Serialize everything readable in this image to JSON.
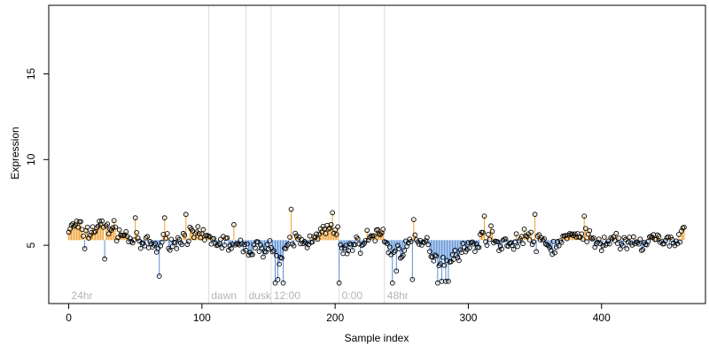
{
  "chart_data": {
    "type": "scatter",
    "title": "",
    "xlabel": "Sample index",
    "ylabel": "Expression",
    "xlim": [
      -15,
      478
    ],
    "ylim": [
      1.6,
      19.0
    ],
    "x_ticks": [
      "0",
      "100",
      "200",
      "300",
      "400"
    ],
    "x_tick_values": [
      0,
      100,
      200,
      300,
      400
    ],
    "y_ticks": [
      "5",
      "10",
      "15"
    ],
    "y_tick_values": [
      5,
      10,
      15
    ],
    "baseline": 5.3,
    "grid": false,
    "colors": {
      "above_baseline": "#f0a030",
      "below_baseline": "#5a8fd6",
      "condition_divider": "#dcdcdc",
      "condition_label": "#b4b4b4",
      "point_stroke": "#000000"
    },
    "conditions": [
      {
        "label": "24hr",
        "start": 0
      },
      {
        "label": "dawn",
        "start": 105
      },
      {
        "label": "dusk",
        "start": 133
      },
      {
        "label": "12:00",
        "start": 152
      },
      {
        "label": "0:00",
        "start": 203
      },
      {
        "label": "48hr",
        "start": 237
      }
    ],
    "anchors": [
      [
        0,
        5.9
      ],
      [
        5,
        6.2
      ],
      [
        10,
        5.9
      ],
      [
        15,
        5.7
      ],
      [
        20,
        6.0
      ],
      [
        26,
        6.2
      ],
      [
        32,
        6.0
      ],
      [
        38,
        5.7
      ],
      [
        44,
        5.5
      ],
      [
        50,
        5.2
      ],
      [
        55,
        5.0
      ],
      [
        60,
        5.1
      ],
      [
        66,
        4.9
      ],
      [
        70,
        5.1
      ],
      [
        75,
        5.4
      ],
      [
        80,
        5.0
      ],
      [
        86,
        5.6
      ],
      [
        92,
        5.6
      ],
      [
        98,
        5.5
      ],
      [
        104,
        5.4
      ],
      [
        110,
        5.2
      ],
      [
        116,
        5.2
      ],
      [
        122,
        5.0
      ],
      [
        128,
        4.9
      ],
      [
        134,
        4.8
      ],
      [
        140,
        4.8
      ],
      [
        146,
        4.9
      ],
      [
        152,
        5.0
      ],
      [
        156,
        4.2
      ],
      [
        160,
        4.0
      ],
      [
        166,
        5.2
      ],
      [
        172,
        5.4
      ],
      [
        178,
        5.0
      ],
      [
        184,
        5.7
      ],
      [
        190,
        5.7
      ],
      [
        196,
        6.0
      ],
      [
        202,
        5.6
      ],
      [
        206,
        4.5
      ],
      [
        212,
        5.1
      ],
      [
        218,
        5.0
      ],
      [
        224,
        5.4
      ],
      [
        230,
        5.6
      ],
      [
        236,
        5.7
      ],
      [
        240,
        4.8
      ],
      [
        245,
        4.6
      ],
      [
        250,
        4.7
      ],
      [
        256,
        5.2
      ],
      [
        262,
        5.0
      ],
      [
        268,
        5.2
      ],
      [
        274,
        4.4
      ],
      [
        278,
        4.2
      ],
      [
        282,
        4.0
      ],
      [
        286,
        4.3
      ],
      [
        292,
        4.6
      ],
      [
        298,
        4.8
      ],
      [
        304,
        5.0
      ],
      [
        310,
        5.4
      ],
      [
        316,
        5.7
      ],
      [
        322,
        5.0
      ],
      [
        328,
        5.3
      ],
      [
        334,
        4.9
      ],
      [
        340,
        5.6
      ],
      [
        346,
        5.5
      ],
      [
        350,
        5.0
      ],
      [
        356,
        5.3
      ],
      [
        362,
        4.8
      ],
      [
        368,
        5.1
      ],
      [
        374,
        5.6
      ],
      [
        380,
        5.3
      ],
      [
        386,
        5.9
      ],
      [
        392,
        5.3
      ],
      [
        398,
        5.0
      ],
      [
        404,
        5.2
      ],
      [
        410,
        5.5
      ],
      [
        416,
        5.0
      ],
      [
        422,
        5.1
      ],
      [
        428,
        5.0
      ],
      [
        434,
        5.2
      ],
      [
        440,
        5.5
      ],
      [
        446,
        5.0
      ],
      [
        452,
        5.4
      ],
      [
        458,
        5.2
      ],
      [
        462,
        6.2
      ]
    ],
    "outliers": [
      [
        12,
        4.8
      ],
      [
        27,
        4.2
      ],
      [
        50,
        6.6
      ],
      [
        68,
        3.2
      ],
      [
        72,
        6.6
      ],
      [
        88,
        6.8
      ],
      [
        124,
        6.2
      ],
      [
        155,
        2.8
      ],
      [
        157,
        3.0
      ],
      [
        161,
        2.8
      ],
      [
        167,
        7.1
      ],
      [
        198,
        6.9
      ],
      [
        203,
        2.8
      ],
      [
        243,
        2.8
      ],
      [
        246,
        3.5
      ],
      [
        258,
        3.0
      ],
      [
        259,
        6.5
      ],
      [
        277,
        2.8
      ],
      [
        280,
        2.9
      ],
      [
        283,
        2.9
      ],
      [
        285,
        2.9
      ],
      [
        312,
        6.7
      ],
      [
        350,
        6.8
      ],
      [
        387,
        6.7
      ]
    ]
  }
}
